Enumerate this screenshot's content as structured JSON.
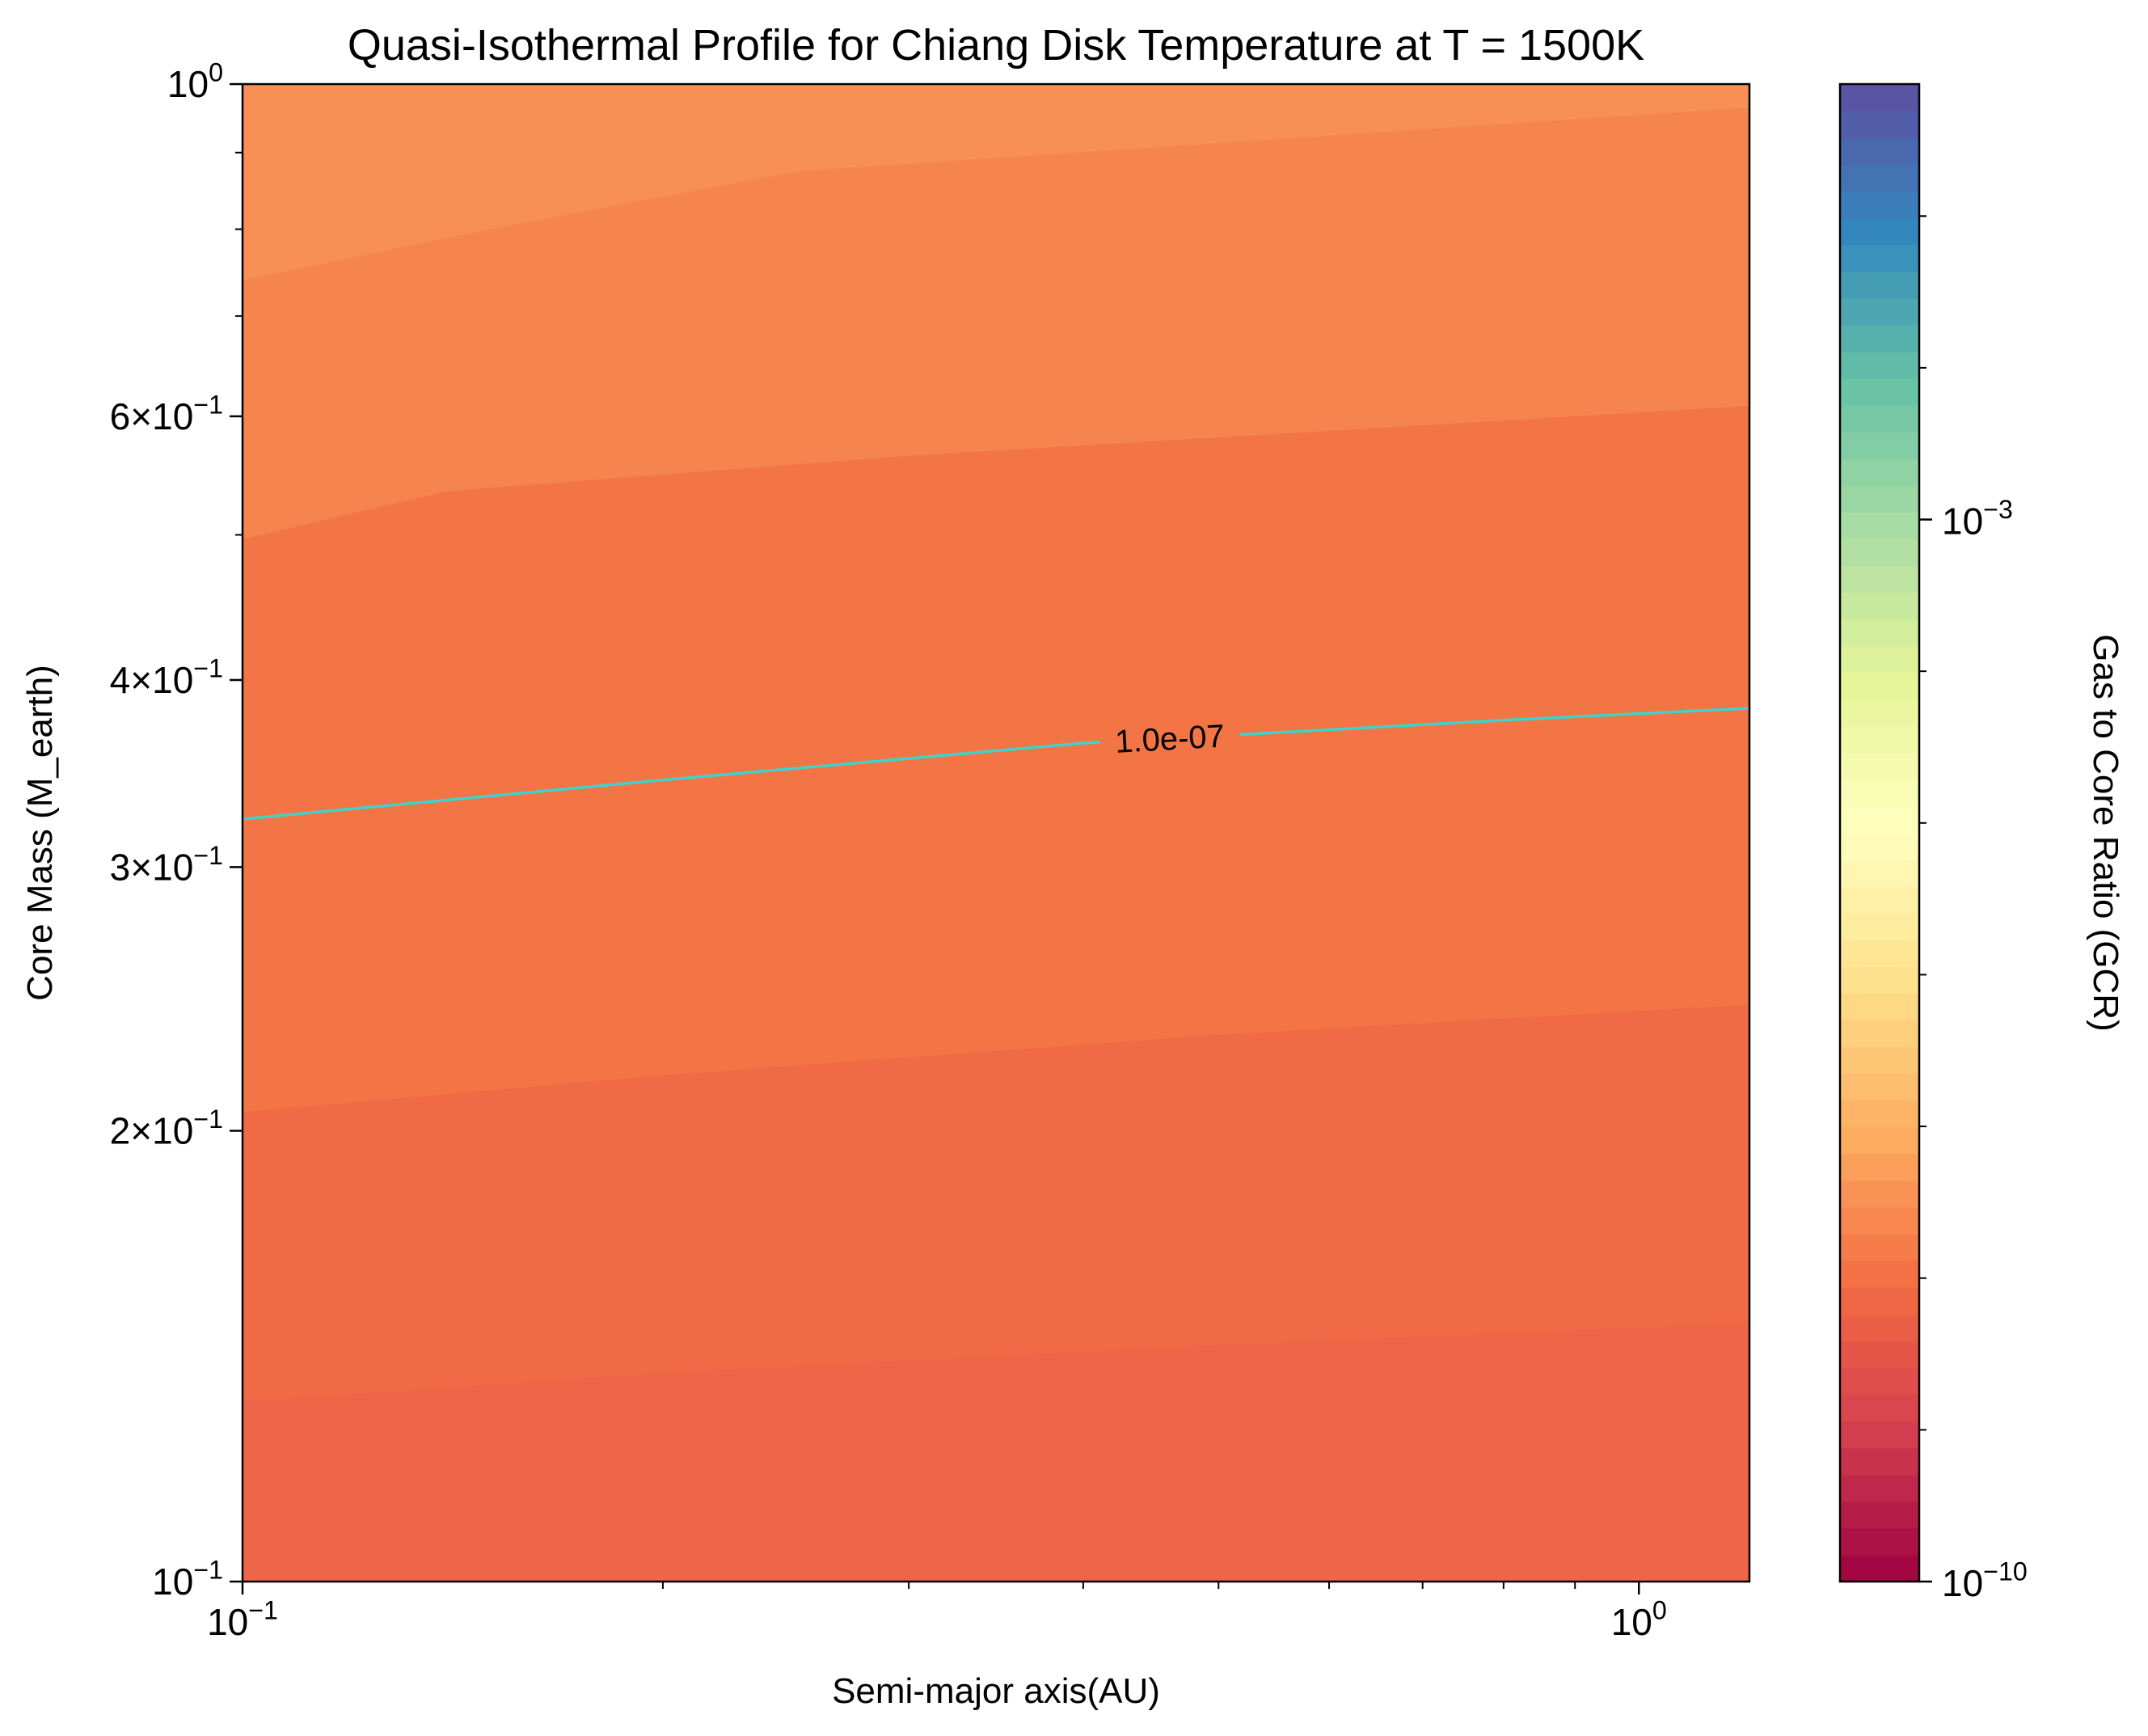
{
  "chart_data": {
    "type": "heatmap",
    "title": "Quasi-Isothermal Profile for Chiang Disk Temperature at T = 1500K",
    "xlabel": "Semi-major axis(AU)",
    "ylabel": "Core Mass (M_earth)",
    "colorbar_label": "Gas to Core Ratio (GCR)",
    "x_scale": "log",
    "y_scale": "log",
    "xlim": [
      0.1,
      1.2
    ],
    "ylim": [
      0.1,
      1.0
    ],
    "x_ticks": [
      {
        "value": 0.1,
        "base": "10",
        "exp": "−1"
      },
      {
        "value": 1.0,
        "base": "10",
        "exp": "0"
      }
    ],
    "y_ticks": [
      {
        "value": 0.1,
        "mant": "",
        "base": "10",
        "exp": "−1"
      },
      {
        "value": 0.2,
        "mant": "2×",
        "base": "10",
        "exp": "−1"
      },
      {
        "value": 0.3,
        "mant": "3×",
        "base": "10",
        "exp": "−1"
      },
      {
        "value": 0.4,
        "mant": "4×",
        "base": "10",
        "exp": "−1"
      },
      {
        "value": 0.6,
        "mant": "6×",
        "base": "10",
        "exp": "−1"
      },
      {
        "value": 1.0,
        "mant": "",
        "base": "10",
        "exp": "0"
      }
    ],
    "colorbar": {
      "scale": "log",
      "colormap": "Spectral",
      "range": [
        1e-10,
        0.001
      ],
      "ticks": [
        {
          "value": 1e-10,
          "base": "10",
          "exp": "−10"
        },
        {
          "value": 0.001,
          "base": "10",
          "exp": "−3"
        }
      ]
    },
    "filled_bands": [
      {
        "color": "#ee6548",
        "lower_boundary": null,
        "upper_boundary": [
          [
            0.1,
            0.132
          ],
          [
            0.2,
            0.138
          ],
          [
            0.5,
            0.144
          ],
          [
            1.2,
            0.149
          ]
        ]
      },
      {
        "color": "#f06b45",
        "lower_boundary": [
          [
            0.1,
            0.132
          ],
          [
            0.2,
            0.138
          ],
          [
            0.5,
            0.144
          ],
          [
            1.2,
            0.149
          ]
        ],
        "upper_boundary": [
          [
            0.1,
            0.206
          ],
          [
            0.2,
            0.218
          ],
          [
            0.5,
            0.232
          ],
          [
            1.2,
            0.243
          ]
        ]
      },
      {
        "color": "#f37546",
        "lower_boundary": [
          [
            0.1,
            0.206
          ],
          [
            0.2,
            0.218
          ],
          [
            0.5,
            0.232
          ],
          [
            1.2,
            0.243
          ]
        ],
        "upper_boundary": [
          [
            0.1,
            0.497
          ],
          [
            0.14,
            0.535
          ],
          [
            0.3,
            0.565
          ],
          [
            1.2,
            0.61
          ]
        ]
      },
      {
        "color": "#f5844e",
        "lower_boundary": [
          [
            0.1,
            0.497
          ],
          [
            0.14,
            0.535
          ],
          [
            0.3,
            0.565
          ],
          [
            1.2,
            0.61
          ]
        ],
        "upper_boundary": [
          [
            0.1,
            0.74
          ],
          [
            0.15,
            0.8
          ],
          [
            0.25,
            0.875
          ],
          [
            1.2,
            0.965
          ]
        ]
      },
      {
        "color": "#f78f56",
        "lower_boundary": [
          [
            0.1,
            0.74
          ],
          [
            0.15,
            0.8
          ],
          [
            0.25,
            0.875
          ],
          [
            1.2,
            0.965
          ]
        ],
        "upper_boundary": null
      }
    ],
    "contour": {
      "label": "1.0e-07",
      "color": "#3fd3cc",
      "points": [
        [
          0.1,
          0.323
        ],
        [
          0.2,
          0.343
        ],
        [
          0.4,
          0.363
        ],
        [
          0.8,
          0.376
        ],
        [
          1.2,
          0.383
        ]
      ]
    }
  }
}
